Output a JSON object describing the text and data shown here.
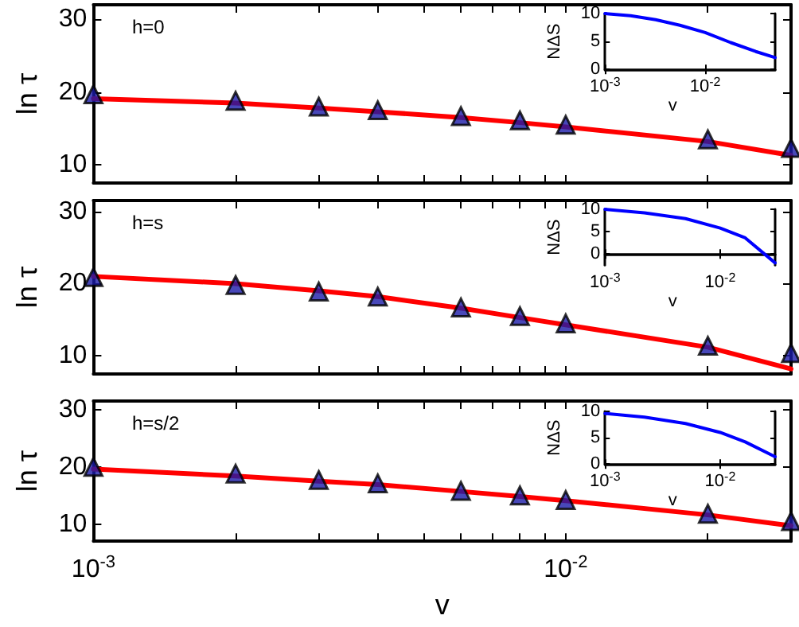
{
  "chart_data": [
    {
      "type": "scatter",
      "ylabel": "ln τ",
      "annotations": [
        "h=0"
      ],
      "log": "x",
      "tick_labels": "y",
      "x": [
        0.001,
        0.002,
        0.003,
        0.004,
        0.006,
        0.008,
        0.01,
        0.02,
        0.03
      ],
      "xlim": [
        0.001,
        0.03
      ],
      "xticks": [
        {
          "value": 0.001,
          "label": null
        },
        {
          "value": 0.002,
          "label": null
        },
        {
          "value": 0.003,
          "label": null
        },
        {
          "value": 0.004,
          "label": null
        },
        {
          "value": 0.005,
          "label": null
        },
        {
          "value": 0.006,
          "label": null
        },
        {
          "value": 0.007,
          "label": null
        },
        {
          "value": 0.008,
          "label": null
        },
        {
          "value": 0.009,
          "label": null
        },
        {
          "value": 0.01,
          "label": null
        },
        {
          "value": 0.02,
          "label": null
        },
        {
          "value": 0.03,
          "label": null
        }
      ],
      "ylim": [
        7.5,
        32
      ],
      "yticks": [
        10,
        20,
        30
      ],
      "series": [
        {
          "type": "line",
          "marker": "none",
          "color": "#ff0000",
          "values": [
            19.1,
            18.5,
            17.8,
            17.3,
            16.5,
            15.8,
            15.2,
            13.2,
            11.3
          ]
        },
        {
          "marker": "triangle",
          "color": "#1a1aa8",
          "values": [
            19.7,
            18.8,
            18.0,
            17.5,
            16.7,
            16.1,
            15.5,
            13.5,
            12.3
          ]
        }
      ]
    },
    {
      "type": "line",
      "xlabel": "v",
      "ylabel": "NΔS",
      "log": "x",
      "x": [
        0.001,
        0.0018,
        0.0032,
        0.0056,
        0.01,
        0.018,
        0.032,
        0.05
      ],
      "xlim": [
        0.001,
        0.05
      ],
      "xticks": [
        {
          "value": 0.001,
          "label": "10$^{-3}$"
        },
        {
          "value": 0.01,
          "label": "10$^{-2}$"
        }
      ],
      "ylim": [
        0,
        10
      ],
      "yticks": [
        0,
        5,
        10
      ],
      "series": [
        {
          "color": "#0000ff",
          "values": [
            10,
            9.6,
            8.9,
            7.9,
            6.6,
            4.8,
            3.2,
            2.1
          ]
        }
      ]
    },
    {
      "type": "scatter",
      "ylabel": "ln τ",
      "annotations": [
        "h=s"
      ],
      "log": "x",
      "tick_labels": "y",
      "x": [
        0.001,
        0.002,
        0.003,
        0.004,
        0.006,
        0.008,
        0.01,
        0.02,
        0.03
      ],
      "xlim": [
        0.001,
        0.03
      ],
      "xticks": [
        {
          "value": 0.001,
          "label": null
        },
        {
          "value": 0.002,
          "label": null
        },
        {
          "value": 0.003,
          "label": null
        },
        {
          "value": 0.004,
          "label": null
        },
        {
          "value": 0.005,
          "label": null
        },
        {
          "value": 0.006,
          "label": null
        },
        {
          "value": 0.007,
          "label": null
        },
        {
          "value": 0.008,
          "label": null
        },
        {
          "value": 0.009,
          "label": null
        },
        {
          "value": 0.01,
          "label": null
        },
        {
          "value": 0.02,
          "label": null
        },
        {
          "value": 0.03,
          "label": null
        }
      ],
      "ylim": [
        7.5,
        31.5
      ],
      "yticks": [
        10,
        20,
        30
      ],
      "series": [
        {
          "type": "line",
          "marker": "none",
          "color": "#ff0000",
          "values": [
            21.0,
            20.0,
            19.0,
            18.2,
            16.6,
            15.3,
            14.3,
            11.2,
            8.2
          ]
        },
        {
          "marker": "triangle",
          "color": "#1a1aa8",
          "values": [
            20.9,
            19.8,
            18.9,
            18.2,
            16.7,
            15.5,
            14.5,
            11.4,
            10.4
          ]
        }
      ]
    },
    {
      "type": "line",
      "xlabel": "v",
      "ylabel": "NΔS",
      "log": "x",
      "x": [
        0.001,
        0.0022,
        0.005,
        0.01,
        0.0165,
        0.03
      ],
      "xlim": [
        0.001,
        0.03
      ],
      "xticks": [
        {
          "value": 0.001,
          "label": "10$^{-3}$"
        },
        {
          "value": 0.01,
          "label": "10$^{-2}$"
        }
      ],
      "ylim": [
        -2.5,
        10
      ],
      "yticks": [
        0,
        5,
        10
      ],
      "series": [
        {
          "color": "#0000ff",
          "values": [
            10,
            9.2,
            7.9,
            5.8,
            3.6,
            -2.0
          ]
        }
      ]
    },
    {
      "type": "scatter",
      "xlabel": "v",
      "ylabel": "ln τ",
      "annotations": [
        "h=s/2"
      ],
      "log": "x",
      "x": [
        0.001,
        0.002,
        0.003,
        0.004,
        0.006,
        0.008,
        0.01,
        0.02,
        0.03
      ],
      "xlim": [
        0.001,
        0.03
      ],
      "xticks": [
        {
          "value": 0.001,
          "label": "10$^{-3}$"
        },
        {
          "value": 0.002,
          "label": null
        },
        {
          "value": 0.003,
          "label": null
        },
        {
          "value": 0.004,
          "label": null
        },
        {
          "value": 0.005,
          "label": null
        },
        {
          "value": 0.006,
          "label": null
        },
        {
          "value": 0.007,
          "label": null
        },
        {
          "value": 0.008,
          "label": null
        },
        {
          "value": 0.009,
          "label": null
        },
        {
          "value": 0.01,
          "label": "10$^{-2}$"
        },
        {
          "value": 0.02,
          "label": null
        },
        {
          "value": 0.03,
          "label": null
        }
      ],
      "ylim": [
        7,
        31.5
      ],
      "yticks": [
        10,
        20,
        30
      ],
      "series": [
        {
          "type": "line",
          "marker": "none",
          "color": "#ff0000",
          "values": [
            19.6,
            18.4,
            17.5,
            16.9,
            15.7,
            14.8,
            14.1,
            11.6,
            9.7
          ]
        },
        {
          "marker": "triangle",
          "color": "#1a1aa8",
          "values": [
            20.0,
            18.8,
            17.7,
            17.1,
            15.8,
            15.0,
            14.2,
            11.8,
            10.5
          ]
        }
      ]
    },
    {
      "type": "line",
      "xlabel": "v",
      "ylabel": "NΔS",
      "log": "x",
      "x": [
        0.001,
        0.0022,
        0.005,
        0.01,
        0.0165,
        0.03
      ],
      "xlim": [
        0.001,
        0.03
      ],
      "xticks": [
        {
          "value": 0.001,
          "label": "10$^{-3}$"
        },
        {
          "value": 0.01,
          "label": "10$^{-2}$"
        }
      ],
      "ylim": [
        0,
        10
      ],
      "yticks": [
        0,
        5,
        10
      ],
      "series": [
        {
          "color": "#0000ff",
          "values": [
            9.6,
            8.9,
            7.7,
            6.0,
            4.2,
            1.4
          ]
        }
      ]
    }
  ]
}
